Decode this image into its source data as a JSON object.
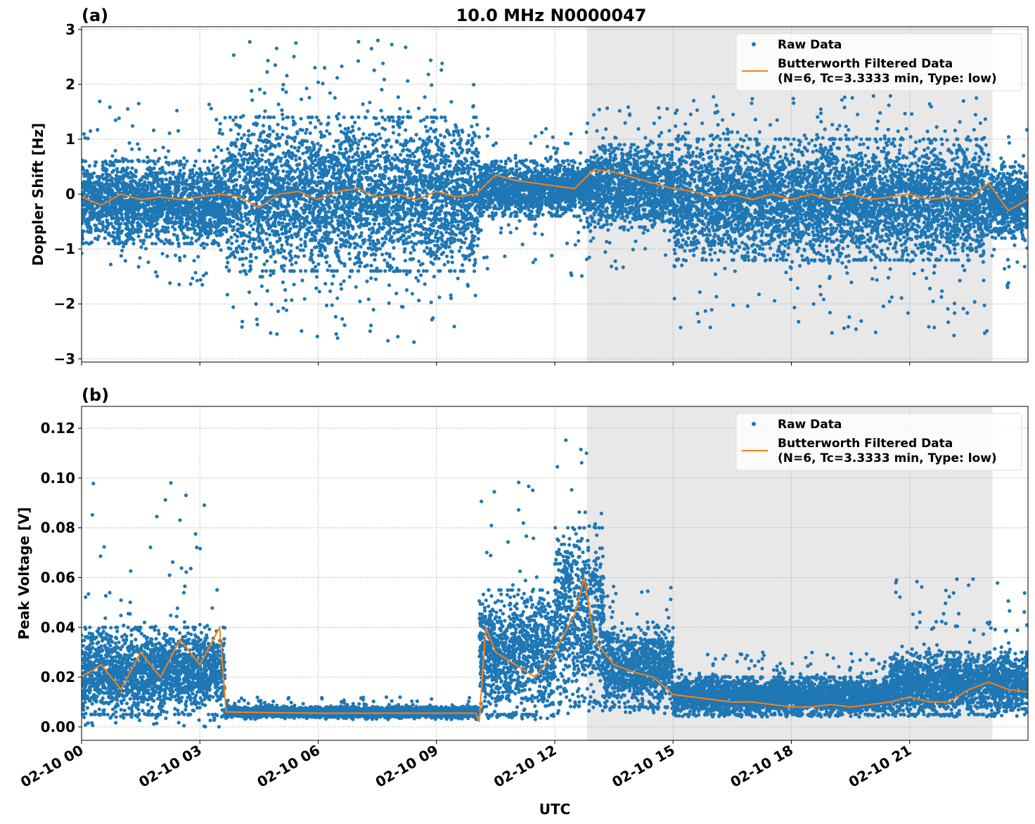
{
  "chart_data": [
    {
      "type": "scatter+line",
      "panel_label": "(a)",
      "title": "10.0 MHz N0000047",
      "ylabel": "Doppler Shift [Hz]",
      "xlabel": "",
      "ylim": [
        -3.06,
        3.05
      ],
      "xlim": [
        "02-10 00:00",
        "02-11 00:00"
      ],
      "yticks": [
        "3",
        "2",
        "1",
        "0",
        "−1",
        "−2",
        "−3"
      ],
      "ytick_values": [
        3,
        2,
        1,
        0,
        -1,
        -2,
        -3
      ],
      "grid": true,
      "legend": {
        "placement": "top-right",
        "entries": [
          "Raw Data",
          "Butterworth Filtered Data\n(N=6, Tc=3.3333 min, Type: low)"
        ]
      },
      "shaded_interval": [
        "02-10 12:49",
        "02-10 23:06"
      ],
      "colors": {
        "raw": "#1f77b4",
        "filtered": "#ff7f0e",
        "shade": "#e8e8e8"
      },
      "raw_envelope": [
        {
          "from": "02-10 00:00",
          "to": "02-10 03:40",
          "lo": -0.9,
          "hi": 0.6,
          "outlier_lo": -1.7,
          "outlier_hi": 1.7
        },
        {
          "from": "02-10 03:40",
          "to": "02-10 10:05",
          "lo": -1.4,
          "hi": 1.4,
          "outlier_lo": -2.7,
          "outlier_hi": 2.8
        },
        {
          "from": "02-10 10:05",
          "to": "02-10 12:48",
          "lo": -0.4,
          "hi": 0.6,
          "outlier_lo": -1.5,
          "outlier_hi": 1.2
        },
        {
          "from": "02-10 12:48",
          "to": "02-10 15:00",
          "lo": -0.6,
          "hi": 0.9,
          "outlier_lo": -1.4,
          "outlier_hi": 1.6
        },
        {
          "from": "02-10 15:00",
          "to": "02-10 23:00",
          "lo": -1.2,
          "hi": 1.0,
          "outlier_lo": -2.6,
          "outlier_hi": 1.8
        },
        {
          "from": "02-10 23:00",
          "to": "02-11 00:00",
          "lo": -0.8,
          "hi": 0.5,
          "outlier_lo": -1.7,
          "outlier_hi": 1.2
        }
      ],
      "filtered": {
        "x": [
          "02-10 00:00",
          "02-10 00:30",
          "02-10 01:00",
          "02-10 01:30",
          "02-10 02:00",
          "02-10 02:30",
          "02-10 03:00",
          "02-10 03:30",
          "02-10 04:00",
          "02-10 04:30",
          "02-10 05:00",
          "02-10 05:30",
          "02-10 06:00",
          "02-10 06:30",
          "02-10 07:00",
          "02-10 07:30",
          "02-10 08:00",
          "02-10 08:30",
          "02-10 09:00",
          "02-10 09:30",
          "02-10 10:00",
          "02-10 10:30",
          "02-10 11:00",
          "02-10 11:30",
          "02-10 12:00",
          "02-10 12:30",
          "02-10 13:00",
          "02-10 13:30",
          "02-10 14:00",
          "02-10 14:30",
          "02-10 15:00",
          "02-10 15:30",
          "02-10 16:00",
          "02-10 16:30",
          "02-10 17:00",
          "02-10 17:30",
          "02-10 18:00",
          "02-10 18:30",
          "02-10 19:00",
          "02-10 19:30",
          "02-10 20:00",
          "02-10 20:30",
          "02-10 21:00",
          "02-10 21:30",
          "02-10 22:00",
          "02-10 22:30",
          "02-10 23:00",
          "02-10 23:30",
          "02-11 00:00"
        ],
        "y": [
          -0.05,
          -0.2,
          0.0,
          -0.1,
          -0.05,
          -0.1,
          -0.05,
          0.0,
          -0.05,
          -0.25,
          0.0,
          0.05,
          -0.1,
          0.05,
          0.1,
          -0.05,
          0.0,
          -0.1,
          0.05,
          -0.05,
          0.0,
          0.35,
          0.25,
          0.2,
          0.15,
          0.1,
          0.45,
          0.4,
          0.3,
          0.2,
          0.1,
          0.05,
          -0.05,
          0.0,
          -0.1,
          0.0,
          -0.1,
          0.0,
          -0.1,
          0.0,
          -0.1,
          -0.05,
          0.0,
          -0.1,
          -0.05,
          -0.1,
          0.2,
          -0.3,
          -0.1
        ]
      }
    },
    {
      "type": "scatter+line",
      "panel_label": "(b)",
      "ylabel": "Peak Voltage [V]",
      "xlabel": "UTC",
      "ylim": [
        -0.0054,
        0.1288
      ],
      "xlim": [
        "02-10 00:00",
        "02-11 00:00"
      ],
      "yticks": [
        "0.12",
        "0.10",
        "0.08",
        "0.06",
        "0.04",
        "0.02",
        "0.00"
      ],
      "ytick_values": [
        0.12,
        0.1,
        0.08,
        0.06,
        0.04,
        0.02,
        0.0
      ],
      "xticks": [
        "02-10 00",
        "02-10 03",
        "02-10 06",
        "02-10 09",
        "02-10 12",
        "02-10 15",
        "02-10 18",
        "02-10 21"
      ],
      "xtick_values": [
        "02-10 00:00",
        "02-10 03:00",
        "02-10 06:00",
        "02-10 09:00",
        "02-10 12:00",
        "02-10 15:00",
        "02-10 18:00",
        "02-10 21:00"
      ],
      "grid": true,
      "legend": {
        "placement": "top-right",
        "entries": [
          "Raw Data",
          "Butterworth Filtered Data\n(N=6, Tc=3.3333 min, Type: low)"
        ]
      },
      "shaded_interval": [
        "02-10 12:49",
        "02-10 23:06"
      ],
      "colors": {
        "raw": "#1f77b4",
        "filtered": "#ff7f0e",
        "shade": "#e8e8e8"
      },
      "raw_envelope": [
        {
          "from": "02-10 00:00",
          "to": "02-10 03:38",
          "lo": 0.005,
          "hi": 0.04,
          "outlier_lo": 0.0,
          "outlier_hi": 0.099
        },
        {
          "from": "02-10 03:38",
          "to": "02-10 10:05",
          "lo": 0.004,
          "hi": 0.008,
          "outlier_lo": 0.003,
          "outlier_hi": 0.012
        },
        {
          "from": "02-10 10:05",
          "to": "02-10 12:00",
          "lo": 0.005,
          "hi": 0.055,
          "outlier_lo": 0.003,
          "outlier_hi": 0.099
        },
        {
          "from": "02-10 12:00",
          "to": "02-10 13:15",
          "lo": 0.01,
          "hi": 0.08,
          "outlier_lo": 0.005,
          "outlier_hi": 0.122
        },
        {
          "from": "02-10 13:15",
          "to": "02-10 15:00",
          "lo": 0.008,
          "hi": 0.04,
          "outlier_lo": 0.005,
          "outlier_hi": 0.057
        },
        {
          "from": "02-10 15:00",
          "to": "02-10 20:30",
          "lo": 0.005,
          "hi": 0.02,
          "outlier_lo": 0.004,
          "outlier_hi": 0.03
        },
        {
          "from": "02-10 20:30",
          "to": "02-11 00:00",
          "lo": 0.005,
          "hi": 0.03,
          "outlier_lo": 0.004,
          "outlier_hi": 0.06
        }
      ],
      "filtered": {
        "x": [
          "02-10 00:00",
          "02-10 00:30",
          "02-10 01:00",
          "02-10 01:30",
          "02-10 02:00",
          "02-10 02:30",
          "02-10 03:00",
          "02-10 03:30",
          "02-10 03:40",
          "02-10 04:30",
          "02-10 06:00",
          "02-10 08:00",
          "02-10 10:00",
          "02-10 10:05",
          "02-10 10:15",
          "02-10 10:30",
          "02-10 11:00",
          "02-10 11:30",
          "02-10 12:00",
          "02-10 12:30",
          "02-10 12:45",
          "02-10 13:00",
          "02-10 13:30",
          "02-10 14:00",
          "02-10 14:30",
          "02-10 15:00",
          "02-10 15:30",
          "02-10 16:00",
          "02-10 16:30",
          "02-10 17:00",
          "02-10 17:30",
          "02-10 18:00",
          "02-10 18:30",
          "02-10 19:00",
          "02-10 19:30",
          "02-10 20:00",
          "02-10 20:30",
          "02-10 21:00",
          "02-10 21:30",
          "02-10 22:00",
          "02-10 22:30",
          "02-10 23:00",
          "02-10 23:30",
          "02-11 00:00"
        ],
        "y": [
          0.02,
          0.025,
          0.015,
          0.03,
          0.02,
          0.035,
          0.025,
          0.04,
          0.006,
          0.0058,
          0.0055,
          0.0055,
          0.0055,
          0.002,
          0.04,
          0.03,
          0.025,
          0.02,
          0.03,
          0.045,
          0.06,
          0.035,
          0.025,
          0.022,
          0.02,
          0.013,
          0.012,
          0.011,
          0.01,
          0.01,
          0.009,
          0.008,
          0.008,
          0.009,
          0.008,
          0.009,
          0.01,
          0.012,
          0.01,
          0.01,
          0.015,
          0.018,
          0.015,
          0.014
        ]
      }
    }
  ]
}
